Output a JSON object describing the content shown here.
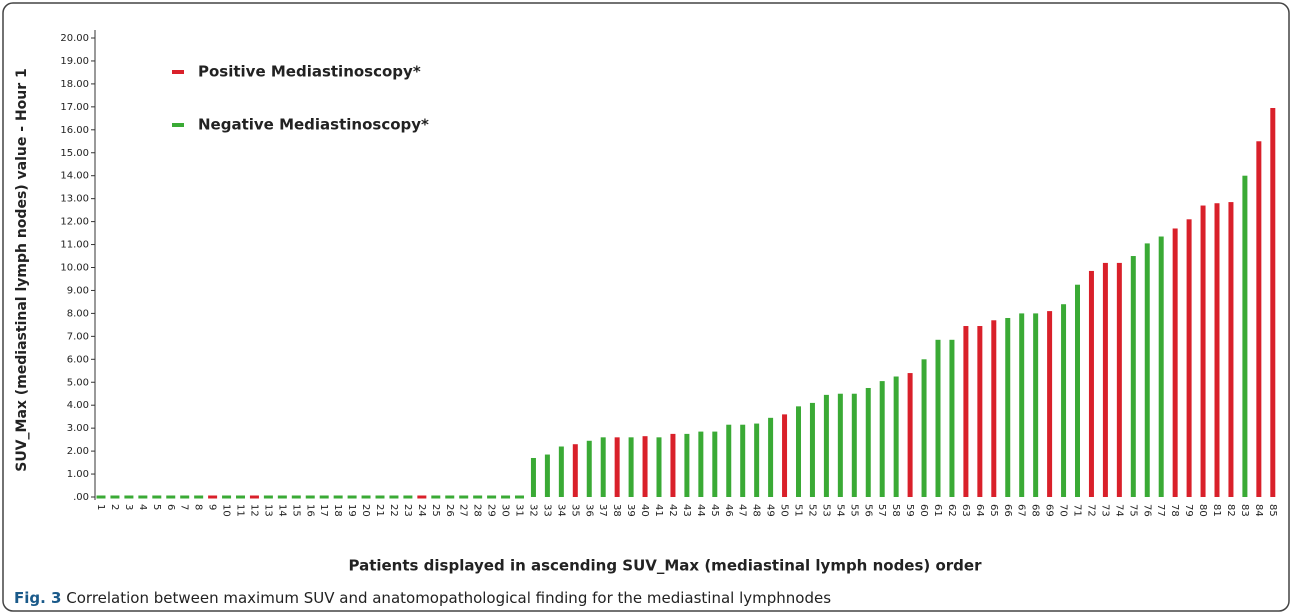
{
  "chart_data": {
    "type": "bar",
    "y_label": "SUV_Max (mediastinal lymph nodes) value - Hour 1",
    "x_label": "Patients displayed in ascending SUV_Max (mediastinal lymph nodes) order",
    "categories": [
      "1",
      "2",
      "3",
      "4",
      "5",
      "6",
      "7",
      "8",
      "9",
      "10",
      "11",
      "12",
      "13",
      "14",
      "15",
      "16",
      "17",
      "18",
      "19",
      "20",
      "21",
      "22",
      "23",
      "24",
      "25",
      "26",
      "27",
      "28",
      "29",
      "30",
      "31",
      "32",
      "33",
      "34",
      "35",
      "36",
      "37",
      "38",
      "39",
      "40",
      "41",
      "42",
      "43",
      "44",
      "45",
      "46",
      "47",
      "48",
      "49",
      "50",
      "51",
      "52",
      "53",
      "54",
      "55",
      "56",
      "57",
      "58",
      "59",
      "60",
      "61",
      "62",
      "63",
      "64",
      "65",
      "66",
      "67",
      "68",
      "69",
      "70",
      "71",
      "72",
      "73",
      "74",
      "75",
      "76",
      "77",
      "78",
      "79",
      "80",
      "81",
      "82",
      "83",
      "84",
      "85"
    ],
    "series": [
      {
        "name": "Positive Mediastinoscopy*",
        "color": "#d9202a",
        "values": [
          null,
          null,
          null,
          null,
          null,
          null,
          null,
          null,
          0,
          null,
          null,
          0,
          null,
          null,
          null,
          null,
          null,
          null,
          null,
          null,
          null,
          null,
          null,
          0,
          null,
          null,
          null,
          null,
          null,
          null,
          null,
          null,
          null,
          null,
          2.3,
          null,
          null,
          2.6,
          null,
          2.65,
          null,
          2.75,
          null,
          null,
          null,
          null,
          null,
          null,
          null,
          3.6,
          null,
          null,
          null,
          null,
          null,
          null,
          null,
          null,
          5.4,
          null,
          null,
          null,
          7.45,
          7.45,
          7.7,
          null,
          null,
          null,
          8.1,
          null,
          null,
          9.85,
          10.2,
          10.2,
          null,
          null,
          null,
          11.7,
          12.1,
          12.7,
          12.8,
          12.85,
          null,
          15.5,
          16.95
        ]
      },
      {
        "name": "Negative Mediastinoscopy*",
        "color": "#3aaa35",
        "values": [
          0,
          0,
          0,
          0,
          0,
          0,
          0,
          0,
          null,
          0,
          0,
          null,
          0,
          0,
          0,
          0,
          0,
          0,
          0,
          0,
          0,
          0,
          0,
          null,
          0,
          0,
          0,
          0,
          0,
          0,
          0,
          1.7,
          1.85,
          2.2,
          null,
          2.45,
          2.6,
          null,
          2.6,
          null,
          2.6,
          null,
          2.75,
          2.85,
          2.85,
          3.15,
          3.15,
          3.2,
          3.45,
          null,
          3.95,
          4.1,
          4.45,
          4.5,
          4.5,
          4.75,
          5.05,
          5.25,
          null,
          6.0,
          6.85,
          6.85,
          null,
          null,
          null,
          7.8,
          8.0,
          8.0,
          null,
          8.4,
          9.25,
          null,
          null,
          null,
          10.5,
          11.05,
          11.35,
          null,
          null,
          null,
          null,
          null,
          14,
          null,
          null
        ]
      }
    ],
    "ylim": [
      0,
      20
    ],
    "yticks": [
      {
        "value": 0,
        "label": ".00"
      },
      {
        "value": 1,
        "label": "1.00"
      },
      {
        "value": 2,
        "label": "2.00"
      },
      {
        "value": 3,
        "label": "3.00"
      },
      {
        "value": 4,
        "label": "4.00"
      },
      {
        "value": 5,
        "label": "5.00"
      },
      {
        "value": 6,
        "label": "6.00"
      },
      {
        "value": 7,
        "label": "7.00"
      },
      {
        "value": 8,
        "label": "8.00"
      },
      {
        "value": 9,
        "label": "9.00"
      },
      {
        "value": 10,
        "label": "10.00"
      },
      {
        "value": 11,
        "label": "11.00"
      },
      {
        "value": 12,
        "label": "12.00"
      },
      {
        "value": 13,
        "label": "13.00"
      },
      {
        "value": 14,
        "label": "14.00"
      },
      {
        "value": 15,
        "label": "15.00"
      },
      {
        "value": 16,
        "label": "16.00"
      },
      {
        "value": 17,
        "label": "17.00"
      },
      {
        "value": 18,
        "label": "18.00"
      },
      {
        "value": 19,
        "label": "19.00"
      },
      {
        "value": 20,
        "label": "20.00"
      }
    ],
    "grid": false,
    "legend_position": "top-left"
  },
  "caption": {
    "label": "Fig. 3",
    "text": "Correlation between maximum SUV and anatomopathological finding for the mediastinal lymphnodes"
  }
}
